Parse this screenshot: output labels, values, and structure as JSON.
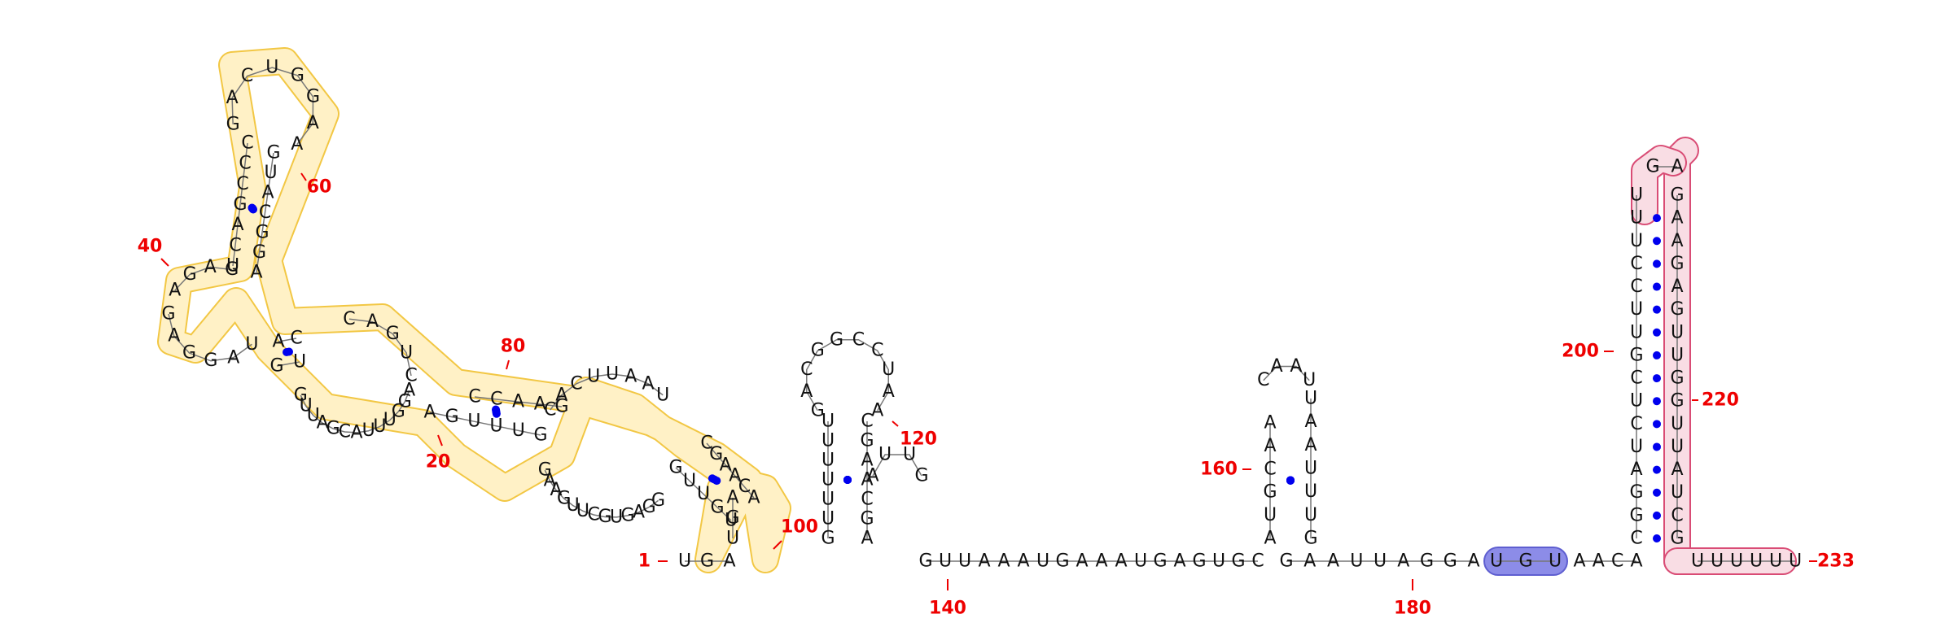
{
  "colors": {
    "nucleotide": "#111111",
    "backbone": "#777777",
    "pair_dot": "#0000ee",
    "number": "#ee0000",
    "hl_yellow_fill": "#fff1c6",
    "hl_yellow_stroke": "#f2c744",
    "hl_pink_fill": "#f9dde4",
    "hl_pink_stroke": "#d94c75",
    "hl_blue_fill": "#8c8ce8",
    "hl_blue_stroke": "#5e5ed0"
  },
  "numbering": {
    "n1": "1",
    "n20": "20",
    "n40": "40",
    "n60": "60",
    "n80": "80",
    "n100": "100",
    "n120": "120",
    "n140": "140",
    "n160": "160",
    "n180": "180",
    "n200": "200",
    "n220": "220",
    "n233": "233"
  },
  "strands": {
    "d1_5p": "UGA",
    "d1_3p": "UGA",
    "d2_5p": "UGUUG",
    "d2_3p": "ACAAGC",
    "int_loop_5p": "UAAUUCAC",
    "int_loop_3p": "GAAGUUCGUGAGG",
    "d3_5p": "CCAAG",
    "d3_3p": "AGUUUG",
    "loop2_5p": "CAGUC",
    "loop2_3p": "GUUAGCAUUUGGA",
    "d4_5p": "AC",
    "d4_3p": "GU",
    "loop3_5p": "GAGA",
    "loop3_3p": "GAGGAU",
    "d5_5p": "CCCGACU",
    "d5_3p": "GUACGGA",
    "apical_loop": "GACUGGAA",
    "h2_5p": "GUUUUUU",
    "h2_3p": "AGCAAGC",
    "h2_loop": "GACGGCCUAA",
    "h2_branch": "AUUG",
    "link_140": "GUUAAAUGAAAUGAGUGC",
    "h3_5p": "AUGCAA",
    "h3_3p": "GUUUAAU",
    "h3_loop": "CAAU",
    "link_180": "GAAUUAGGA",
    "motif": "UGU",
    "link_200": "AACA",
    "h4_5p": "CGGAUCUCGUUCCUUU",
    "h4_3p": "GAAGAGUUGGUUAUCG",
    "h4_loop": "GA",
    "tail_3p": "UUUUUU"
  }
}
